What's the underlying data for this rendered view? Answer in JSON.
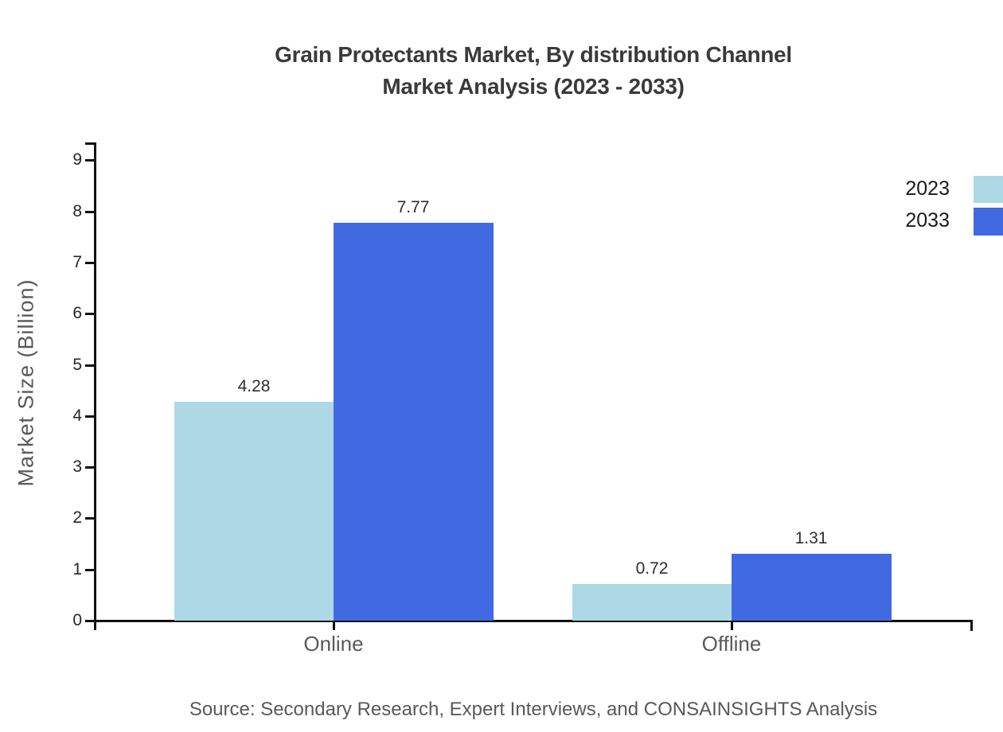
{
  "title": {
    "line1": "Grain Protectants Market, By distribution Channel",
    "line2": "Market Analysis (2023 - 2033)"
  },
  "y_axis": {
    "label": "Market Size (Billion)",
    "ticks": [
      0,
      1,
      2,
      3,
      4,
      5,
      6,
      7,
      8,
      9
    ]
  },
  "legend": [
    {
      "label": "2023",
      "color": "#ADD8E6"
    },
    {
      "label": "2033",
      "color": "#4169E1"
    }
  ],
  "source": "Source: Secondary Research, Expert Interviews, and CONSAINSIGHTS Analysis",
  "colors": {
    "series_2023": "#ADD8E6",
    "series_2033": "#4169E1",
    "axis": "#111111",
    "title_text": "#3a3a3a",
    "gray_text": "#595959",
    "tick_text": "#262626"
  },
  "chart_data": {
    "type": "bar",
    "categories": [
      "Online",
      "Offline"
    ],
    "series": [
      {
        "name": "2023",
        "color": "#ADD8E6",
        "values": [
          4.28,
          0.72
        ]
      },
      {
        "name": "2033",
        "color": "#4169E1",
        "values": [
          7.77,
          1.31
        ]
      }
    ],
    "value_labels": [
      [
        "4.28",
        "7.77"
      ],
      [
        "0.72",
        "1.31"
      ]
    ],
    "title": "Grain Protectants Market, By distribution Channel Market Analysis (2023 - 2033)",
    "xlabel": "",
    "ylabel": "Market Size (Billion)",
    "ylim": [
      0,
      9
    ],
    "ytick_step": 1,
    "grid": false,
    "legend_position": "upper-right outside plot, swatches clipped at right edge"
  }
}
